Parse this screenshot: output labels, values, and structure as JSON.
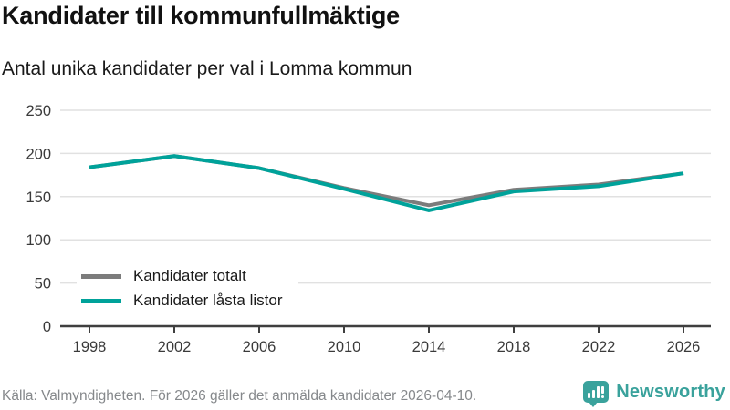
{
  "colors": {
    "teal": "#00a29a",
    "gray": "#7c7c7c",
    "logo_teal": "#3aa29c"
  },
  "chart_data": {
    "type": "line",
    "title": "Kandidater till kommunfullmäktige",
    "subtitle": "Antal unika kandidater per val i Lomma kommun",
    "categories": [
      "1998",
      "2002",
      "2006",
      "2010",
      "2014",
      "2018",
      "2022",
      "2026"
    ],
    "series": [
      {
        "name": "Kandidater totalt",
        "color_key": "gray",
        "values": [
          184,
          197,
          183,
          160,
          140,
          158,
          164,
          177
        ]
      },
      {
        "name": "Kandidater låsta listor",
        "color_key": "teal",
        "values": [
          184,
          197,
          183,
          159,
          134,
          156,
          162,
          177
        ]
      }
    ],
    "ylim": [
      0,
      250
    ],
    "yticks": [
      0,
      50,
      100,
      150,
      200,
      250
    ],
    "grid": "horizontal",
    "legend_position": "inside-bottom-left"
  },
  "footer": {
    "source_note": "Källa: Valmyndigheten. För 2026 gäller det anmälda kandidater 2026-04-10."
  },
  "logo": {
    "brand": "Newsworthy",
    "icon": "speech-bubble-bar-chart-icon"
  }
}
